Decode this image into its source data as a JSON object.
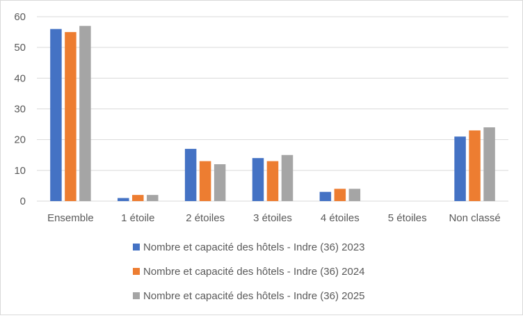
{
  "chart_data": {
    "type": "bar",
    "title": "",
    "xlabel": "",
    "ylabel": "",
    "ylim": [
      0,
      60
    ],
    "yticks": [
      0,
      10,
      20,
      30,
      40,
      50,
      60
    ],
    "grid": true,
    "legend_position": "bottom",
    "categories": [
      "Ensemble",
      "1 étoile",
      "2 étoiles",
      "3 étoiles",
      "4 étoiles",
      "5 étoiles",
      "Non classé"
    ],
    "series": [
      {
        "name": "Nombre et capacité des hôtels - Indre (36) 2023",
        "color": "#4472c4",
        "values": [
          56,
          1,
          17,
          14,
          3,
          0,
          21
        ]
      },
      {
        "name": "Nombre et capacité des hôtels - Indre (36) 2024",
        "color": "#ed7d31",
        "values": [
          55,
          2,
          13,
          13,
          4,
          0,
          23
        ]
      },
      {
        "name": "Nombre et capacité des hôtels - Indre (36) 2025",
        "color": "#a5a5a5",
        "values": [
          57,
          2,
          12,
          15,
          4,
          0,
          24
        ]
      }
    ],
    "gridline_color": "#d9d9d9"
  }
}
